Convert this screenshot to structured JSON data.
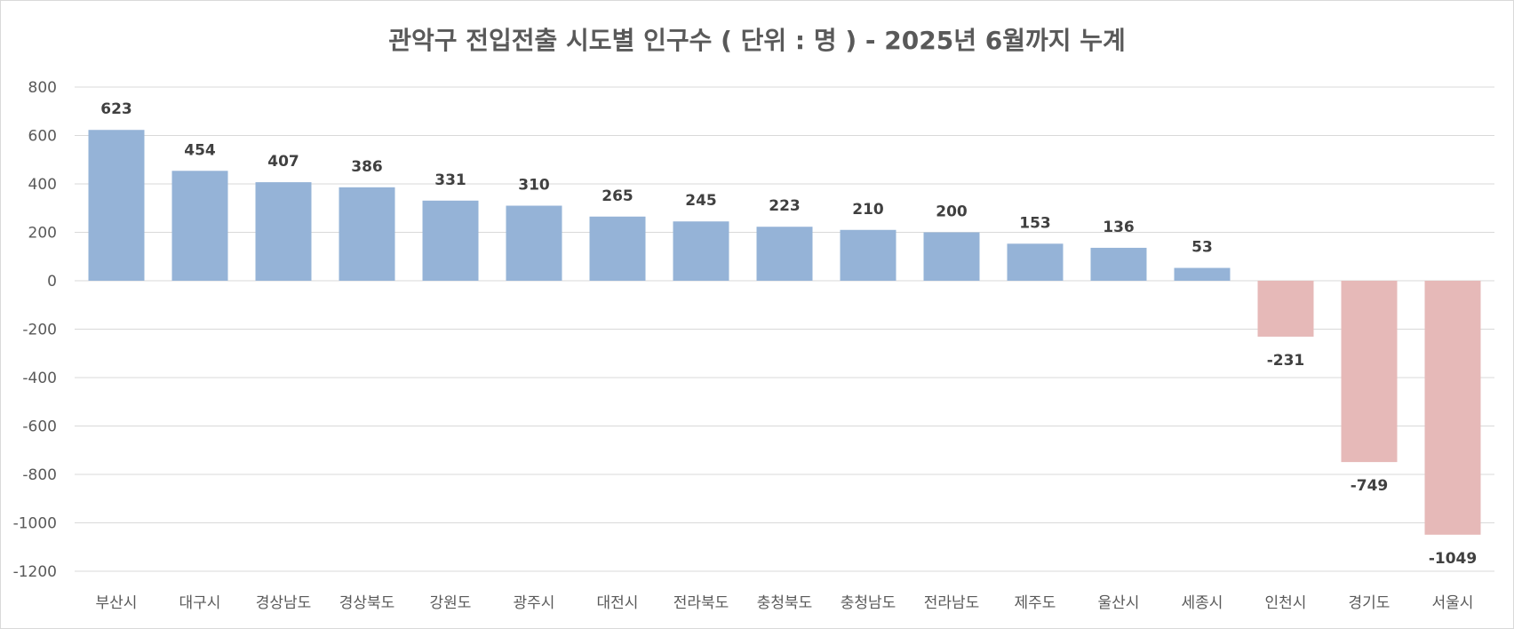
{
  "chart_data": {
    "type": "bar",
    "title": "관악구 전입전출 시도별 인구수 ( 단위 : 명 ) - 2025년 6월까지 누계",
    "xlabel": "",
    "ylabel": "",
    "ylim": [
      -1200,
      800
    ],
    "yticks": [
      800,
      600,
      400,
      200,
      0,
      -200,
      -400,
      -600,
      -800,
      -1000,
      -1200
    ],
    "grid": true,
    "legend": "none",
    "categories": [
      "부산시",
      "대구시",
      "경상남도",
      "경상북도",
      "강원도",
      "광주시",
      "대전시",
      "전라북도",
      "충청북도",
      "충청남도",
      "전라남도",
      "제주도",
      "울산시",
      "세종시",
      "인천시",
      "경기도",
      "서울시"
    ],
    "values": [
      623,
      454,
      407,
      386,
      331,
      310,
      265,
      245,
      223,
      210,
      200,
      153,
      136,
      53,
      -231,
      -749,
      -1049
    ],
    "colors": {
      "positive": "#95b3d7",
      "negative": "#e6b9b8",
      "grid": "#d9d9d9",
      "text": "#595959",
      "label": "#404040"
    }
  }
}
